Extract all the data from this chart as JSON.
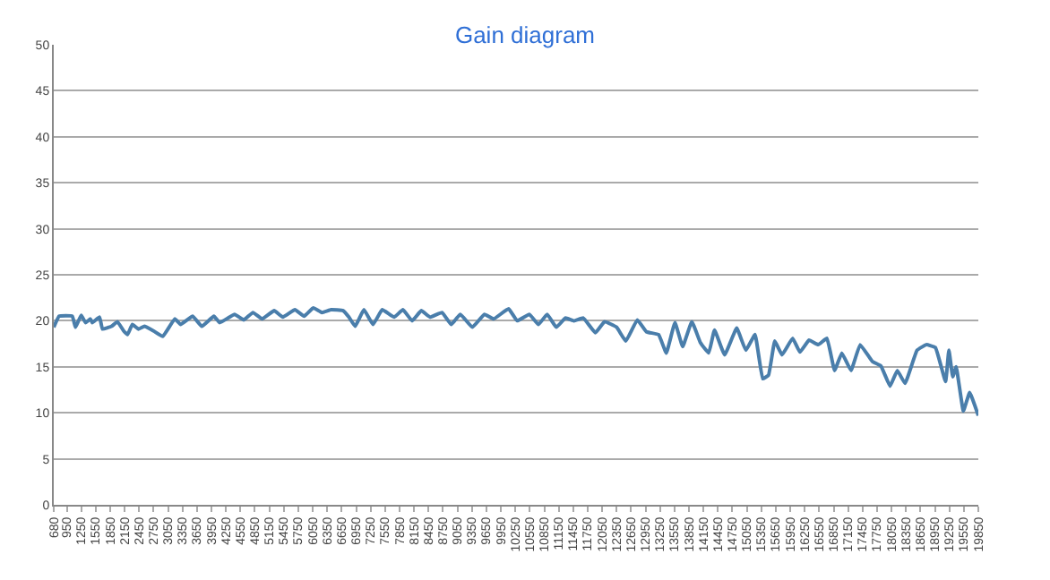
{
  "chart_data": {
    "type": "line",
    "title": "Gain diagram",
    "x": [
      680,
      792,
      1065,
      1130,
      1250,
      1340,
      1440,
      1480,
      1630,
      1690,
      1880,
      2000,
      2130,
      2210,
      2310,
      2440,
      2560,
      2750,
      2940,
      3190,
      3310,
      3560,
      3750,
      4000,
      4120,
      4430,
      4620,
      4810,
      5000,
      5250,
      5430,
      5680,
      5870,
      6060,
      6240,
      6430,
      6680,
      6800,
      6930,
      7110,
      7300,
      7490,
      7740,
      7920,
      8110,
      8300,
      8480,
      8730,
      8920,
      9110,
      9360,
      9610,
      9800,
      10110,
      10290,
      10540,
      10730,
      10910,
      11100,
      11290,
      11470,
      11660,
      11910,
      12100,
      12350,
      12540,
      12780,
      12970,
      13220,
      13380,
      13560,
      13720,
      13910,
      14090,
      14260,
      14380,
      14590,
      14840,
      15030,
      15220,
      15380,
      15500,
      15630,
      15780,
      16000,
      16150,
      16340,
      16530,
      16710,
      16870,
      17020,
      17210,
      17400,
      17650,
      17830,
      18020,
      18170,
      18330,
      18580,
      18770,
      18960,
      19170,
      19240,
      19320,
      19390,
      19540,
      19670,
      19850
    ],
    "series": [
      {
        "color": "#4a7eab",
        "values": [
          19.3,
          20.5,
          20.5,
          19.3,
          20.6,
          19.8,
          20.2,
          19.8,
          20.4,
          19.1,
          19.4,
          19.9,
          18.9,
          18.5,
          19.6,
          19.1,
          19.4,
          18.9,
          18.3,
          20.2,
          19.6,
          20.5,
          19.4,
          20.5,
          19.8,
          20.7,
          20.1,
          20.9,
          20.2,
          21.1,
          20.4,
          21.2,
          20.5,
          21.4,
          20.9,
          21.2,
          21.1,
          20.4,
          19.4,
          21.2,
          19.6,
          21.2,
          20.4,
          21.2,
          20.0,
          21.1,
          20.4,
          20.9,
          19.6,
          20.7,
          19.3,
          20.7,
          20.2,
          21.3,
          20.0,
          20.7,
          19.6,
          20.7,
          19.3,
          20.3,
          20.0,
          20.3,
          18.7,
          19.9,
          19.3,
          17.8,
          20.1,
          18.8,
          18.5,
          16.5,
          19.8,
          17.2,
          19.9,
          17.6,
          16.5,
          19.0,
          16.3,
          19.2,
          16.8,
          18.5,
          13.7,
          14.1,
          17.8,
          16.3,
          18.1,
          16.6,
          17.9,
          17.4,
          18.1,
          14.6,
          16.5,
          14.6,
          17.4,
          15.6,
          15.1,
          12.9,
          14.6,
          13.2,
          16.8,
          17.4,
          17.1,
          13.4,
          16.8,
          13.9,
          15.0,
          10.2,
          12.2,
          9.7
        ]
      }
    ],
    "xlim": [
      680,
      19850
    ],
    "xticks": [
      680,
      950,
      1250,
      1550,
      1850,
      2150,
      2450,
      2750,
      3050,
      3350,
      3650,
      3950,
      4250,
      4550,
      4850,
      5150,
      5450,
      5750,
      6050,
      6350,
      6650,
      6950,
      7250,
      7550,
      7850,
      8150,
      8450,
      8750,
      9050,
      9350,
      9650,
      9950,
      10250,
      10550,
      10850,
      11150,
      11450,
      11750,
      12050,
      12350,
      12650,
      12950,
      13250,
      13550,
      13850,
      14150,
      14450,
      14750,
      15050,
      15350,
      15650,
      15950,
      16250,
      16550,
      16850,
      17150,
      17450,
      17750,
      18050,
      18350,
      18650,
      18950,
      19250,
      19550,
      19850
    ],
    "ylim": [
      0,
      50
    ],
    "yticks": [
      0,
      5,
      10,
      15,
      20,
      25,
      30,
      35,
      40,
      45,
      50
    ],
    "grid": "y",
    "legend": false
  }
}
